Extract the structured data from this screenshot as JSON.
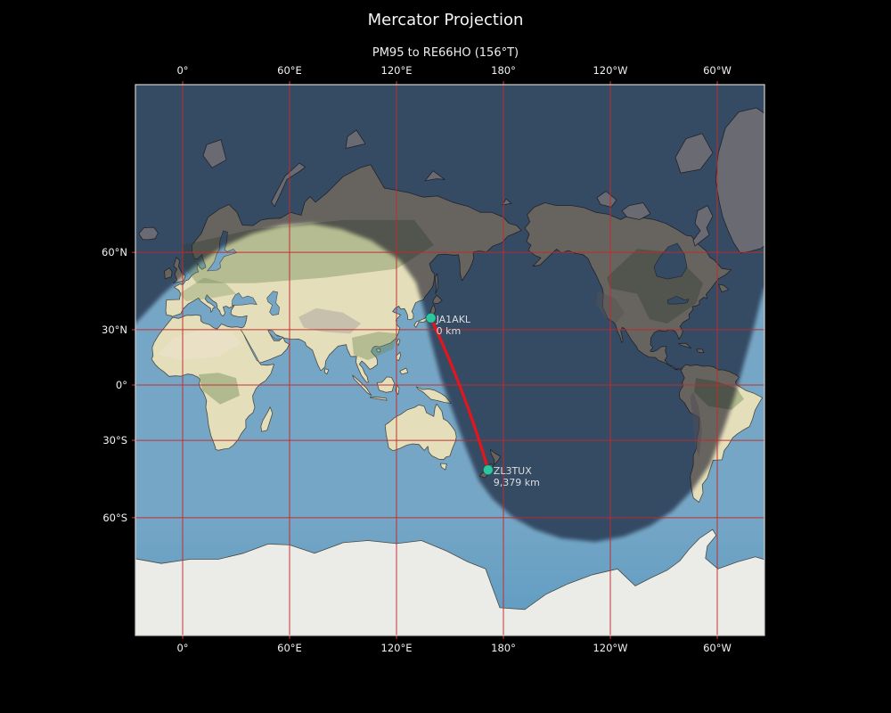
{
  "title": "Mercator Projection",
  "subtitle": "PM95 to RE66HO (156°T)",
  "axes": {
    "lon_ticks": [
      {
        "label": "0°",
        "lon": 0
      },
      {
        "label": "60°E",
        "lon": 60
      },
      {
        "label": "120°E",
        "lon": 120
      },
      {
        "label": "180°",
        "lon": 180
      },
      {
        "label": "120°W",
        "lon": 240
      },
      {
        "label": "60°W",
        "lon": 300
      }
    ],
    "lat_ticks": [
      {
        "label": "60°N",
        "lat": 60
      },
      {
        "label": "30°N",
        "lat": 30
      },
      {
        "label": "0°",
        "lat": 0
      },
      {
        "label": "30°S",
        "lat": -30
      },
      {
        "label": "60°S",
        "lat": -60
      }
    ]
  },
  "route": {
    "from": {
      "callsign": "JA1AKL",
      "distance_label": "0 km",
      "lon": 139.3,
      "lat": 35.6
    },
    "to": {
      "callsign": "ZL3TUX",
      "distance_label": "9,379 km",
      "lon": 171.4,
      "lat": -43.4
    }
  },
  "colors": {
    "background": "#000000",
    "ocean": "#76a6c6",
    "ocean_south": "#5d9cc2",
    "land": "#e4deba",
    "ice": "#ebebe7",
    "coast": "#4a4a42",
    "night": "rgba(3,10,25,0.55)",
    "grid": "#c22a2a",
    "route": "#e8141c",
    "marker": "#2cc7a0",
    "tick_text": "#f2f2f2",
    "point_label": "#dcdcdc"
  }
}
